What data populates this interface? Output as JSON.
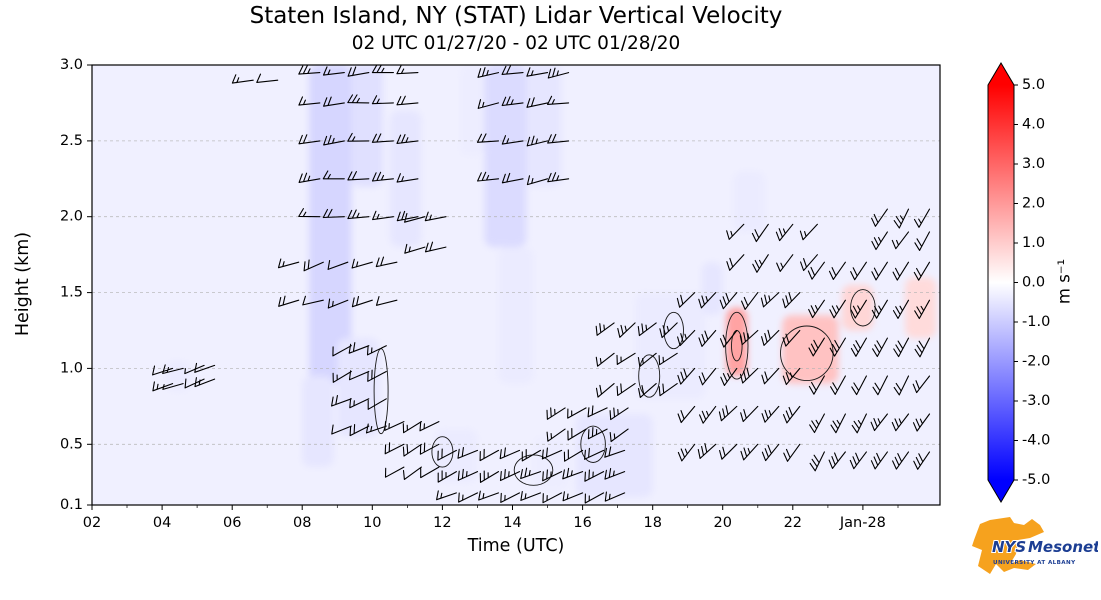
{
  "title": "Staten Island, NY (STAT) Lidar Vertical Velocity",
  "subtitle": "02 UTC 01/27/20 - 02 UTC 01/28/20",
  "xlabel": "Time (UTC)",
  "ylabel": "Height (km)",
  "colorbar": {
    "label": "m s⁻¹",
    "min": -5,
    "max": 5,
    "ticks": [
      5,
      4,
      3,
      2,
      1,
      0,
      -1,
      -2,
      -3,
      -4,
      -5
    ],
    "top_color": "#ff0000",
    "mid_color": "#ffffff",
    "bottom_color": "#0000ff"
  },
  "x_ticks": [
    {
      "t": 2,
      "label": "02"
    },
    {
      "t": 4,
      "label": "04"
    },
    {
      "t": 6,
      "label": "06"
    },
    {
      "t": 8,
      "label": "08"
    },
    {
      "t": 10,
      "label": "10"
    },
    {
      "t": 12,
      "label": "12"
    },
    {
      "t": 14,
      "label": "14"
    },
    {
      "t": 16,
      "label": "16"
    },
    {
      "t": 18,
      "label": "18"
    },
    {
      "t": 20,
      "label": "20"
    },
    {
      "t": 22,
      "label": "22"
    },
    {
      "t": 24,
      "label": "Jan-28"
    }
  ],
  "y_ticks": [
    {
      "h": 0.1,
      "label": "0.1"
    },
    {
      "h": 0.5,
      "label": "0.5"
    },
    {
      "h": 1.0,
      "label": "1.0"
    },
    {
      "h": 1.5,
      "label": "1.5"
    },
    {
      "h": 2.0,
      "label": "2.0"
    },
    {
      "h": 2.5,
      "label": "2.5"
    },
    {
      "h": 3.0,
      "label": "3.0"
    }
  ],
  "chart_data": {
    "type": "heatmap",
    "title": "Staten Island, NY (STAT) Lidar Vertical Velocity",
    "subtitle": "02 UTC 01/27/20 - 02 UTC 01/28/20",
    "x_axis": {
      "label": "Time (UTC)",
      "range": [
        2,
        26.2
      ]
    },
    "y_axis": {
      "label": "Height (km)",
      "range": [
        0.1,
        3.0
      ]
    },
    "value_range": [
      -5,
      5
    ],
    "value_units": "m s⁻¹",
    "colormap": "blue-white-red",
    "grid": "horizontal-dashed",
    "background_value": -0.3,
    "velocity_patches": [
      {
        "t0": 8.2,
        "t1": 9.4,
        "h0": 0.9,
        "h1": 3.0,
        "v": -0.8
      },
      {
        "t0": 9.4,
        "t1": 10.3,
        "h0": 2.2,
        "h1": 3.0,
        "v": -0.6
      },
      {
        "t0": 10.5,
        "t1": 11.4,
        "h0": 1.8,
        "h1": 2.7,
        "v": -0.5
      },
      {
        "t0": 8.0,
        "t1": 8.9,
        "h0": 0.35,
        "h1": 0.95,
        "v": -0.5
      },
      {
        "t0": 9.0,
        "t1": 10.2,
        "h0": 0.55,
        "h1": 1.2,
        "v": -0.5
      },
      {
        "t0": 13.2,
        "t1": 14.4,
        "h0": 1.8,
        "h1": 3.0,
        "v": -0.7
      },
      {
        "t0": 14.4,
        "t1": 15.4,
        "h0": 2.2,
        "h1": 3.0,
        "v": -0.5
      },
      {
        "t0": 13.6,
        "t1": 14.6,
        "h0": 0.9,
        "h1": 1.8,
        "v": -0.4
      },
      {
        "t0": 15.8,
        "t1": 18.0,
        "h0": 0.15,
        "h1": 0.7,
        "v": -0.5
      },
      {
        "t0": 17.5,
        "t1": 19.5,
        "h0": 0.8,
        "h1": 1.5,
        "v": -0.4
      },
      {
        "t0": 12.5,
        "t1": 13.2,
        "h0": 2.4,
        "h1": 3.0,
        "v": -0.35
      },
      {
        "t0": 11.8,
        "t1": 13.0,
        "h0": 0.25,
        "h1": 0.6,
        "v": -0.4
      },
      {
        "t0": 14.6,
        "t1": 15.6,
        "h0": 0.2,
        "h1": 0.55,
        "v": -0.35
      },
      {
        "t0": 6.9,
        "t1": 7.6,
        "h0": 1.3,
        "h1": 1.7,
        "v": -0.3
      },
      {
        "t0": 4.1,
        "t1": 4.8,
        "h0": 0.85,
        "h1": 1.05,
        "v": -0.4
      },
      {
        "t0": 19.4,
        "t1": 20.0,
        "h0": 1.35,
        "h1": 1.7,
        "v": -0.5
      },
      {
        "t0": 20.3,
        "t1": 21.2,
        "h0": 1.9,
        "h1": 2.3,
        "v": -0.4
      },
      {
        "t0": 16.0,
        "t1": 16.6,
        "h0": 2.0,
        "h1": 2.4,
        "v": -0.3
      },
      {
        "t0": 20.1,
        "t1": 20.7,
        "h0": 0.95,
        "h1": 1.4,
        "v": 1.8
      },
      {
        "t0": 21.7,
        "t1": 23.3,
        "h0": 0.9,
        "h1": 1.35,
        "v": 1.2
      },
      {
        "t0": 23.4,
        "t1": 24.3,
        "h0": 1.25,
        "h1": 1.55,
        "v": 0.8
      },
      {
        "t0": 25.2,
        "t1": 26.1,
        "h0": 1.2,
        "h1": 1.6,
        "v": 0.7
      }
    ],
    "contour_ellipses": [
      {
        "t": 20.4,
        "h": 1.15,
        "rt": 0.32,
        "rh": 0.22
      },
      {
        "t": 20.4,
        "h": 1.15,
        "rt": 0.15,
        "rh": 0.1
      },
      {
        "t": 22.4,
        "h": 1.1,
        "rt": 0.75,
        "rh": 0.18
      },
      {
        "t": 14.6,
        "h": 0.33,
        "rt": 0.55,
        "rh": 0.1
      },
      {
        "t": 16.3,
        "h": 0.5,
        "rt": 0.35,
        "rh": 0.12
      },
      {
        "t": 17.9,
        "h": 0.95,
        "rt": 0.3,
        "rh": 0.14
      },
      {
        "t": 10.25,
        "h": 0.85,
        "rt": 0.2,
        "rh": 0.28
      },
      {
        "t": 18.6,
        "h": 1.25,
        "rt": 0.28,
        "rh": 0.12
      },
      {
        "t": 24.0,
        "h": 1.4,
        "rt": 0.35,
        "rh": 0.12
      },
      {
        "t": 12.0,
        "h": 0.45,
        "rt": 0.3,
        "rh": 0.1
      }
    ],
    "wind_barb_clusters": [
      {
        "t": [
          8.5,
          9.2,
          9.9,
          10.6,
          11.3
        ],
        "h": [
          2.0,
          2.25,
          2.5,
          2.75,
          2.95
        ],
        "dir": 185,
        "speed": 20
      },
      {
        "t": [
          13.6,
          14.3,
          15.0,
          15.6
        ],
        "h": [
          2.25,
          2.5,
          2.75,
          2.95
        ],
        "dir": 190,
        "speed": 18
      },
      {
        "t": [
          6.6,
          7.3
        ],
        "h": [
          2.9
        ],
        "dir": 185,
        "speed": 15
      },
      {
        "t": [
          7.9,
          8.6,
          9.3,
          10.0,
          10.7
        ],
        "h": [
          1.45,
          1.7
        ],
        "dir": 198,
        "speed": 15
      },
      {
        "t": [
          11.5,
          12.1
        ],
        "h": [
          1.8,
          2.0
        ],
        "dir": 192,
        "speed": 15
      },
      {
        "t": [
          9.4,
          9.9,
          10.4
        ],
        "h": [
          0.62,
          0.8,
          0.98,
          1.15
        ],
        "dir": 205,
        "speed": 15
      },
      {
        "t": [
          10.9,
          11.4,
          11.9
        ],
        "h": [
          0.35,
          0.5,
          0.65
        ],
        "dir": 210,
        "speed": 15
      },
      {
        "t": [
          12.4,
          13.0,
          13.6,
          14.2,
          14.8,
          15.4,
          16.0,
          16.6,
          17.2
        ],
        "h": [
          0.18,
          0.32,
          0.46
        ],
        "dir": 205,
        "speed": 20
      },
      {
        "t": [
          15.5,
          16.1,
          16.7,
          17.3
        ],
        "h": [
          0.6,
          0.74
        ],
        "dir": 210,
        "speed": 20
      },
      {
        "t": [
          16.9,
          17.5,
          18.1,
          18.7
        ],
        "h": [
          0.9,
          1.1,
          1.3
        ],
        "dir": 218,
        "speed": 22
      },
      {
        "t": [
          19.2,
          19.8,
          20.4,
          21.0,
          21.6,
          22.2
        ],
        "h": [
          0.5,
          0.75,
          1.0,
          1.25,
          1.5
        ],
        "dir": 228,
        "speed": 25
      },
      {
        "t": [
          20.6,
          21.3,
          22.0,
          22.7
        ],
        "h": [
          1.75,
          1.95
        ],
        "dir": 232,
        "speed": 20
      },
      {
        "t": [
          22.9,
          23.5,
          24.1,
          24.7,
          25.3,
          25.9
        ],
        "h": [
          0.45,
          0.7,
          0.95,
          1.2,
          1.45,
          1.7
        ],
        "dir": 238,
        "speed": 25
      },
      {
        "t": [
          24.7,
          25.3,
          25.9
        ],
        "h": [
          1.9,
          2.05
        ],
        "dir": 238,
        "speed": 20
      },
      {
        "t": [
          4.3,
          4.6
        ],
        "h": [
          0.9,
          1.0
        ],
        "dir": 200,
        "speed": 10
      },
      {
        "t": [
          5.2,
          5.5
        ],
        "h": [
          0.93,
          1.02
        ],
        "dir": 200,
        "speed": 10
      }
    ],
    "barb_convention": "half=5, full=10"
  },
  "logo": {
    "name_prefix": "NYS",
    "name_suffix": "Mesonet",
    "subtitle": "UNIVERSITY AT ALBANY",
    "shape_color": "#f6a21e",
    "text_color": "#1c3e93"
  }
}
